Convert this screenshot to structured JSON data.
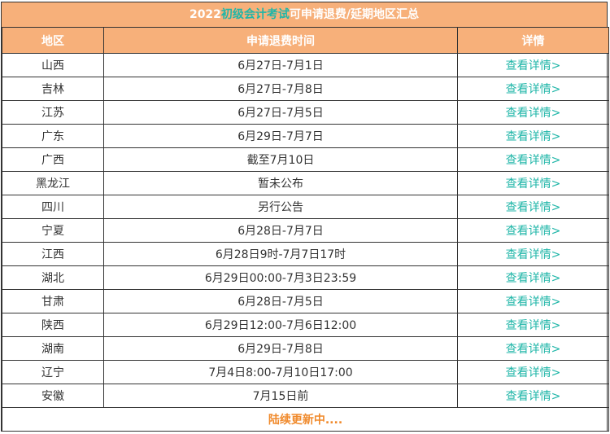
{
  "title": {
    "prefix": "2022",
    "highlight1": "初级会计考试",
    "highlight2": "可申请退费",
    "suffix": "/延期地区汇总"
  },
  "headers": [
    "地区",
    "申请退费时间",
    "详情"
  ],
  "rows": [
    {
      "region": "山西",
      "time": "6月27日-7月1日",
      "detail": "查看详情>"
    },
    {
      "region": "吉林",
      "time": "6月27日-7月8日",
      "detail": "查看详情>"
    },
    {
      "region": "江苏",
      "time": "6月27日-7月5日",
      "detail": "查看详情>"
    },
    {
      "region": "广东",
      "time": "6月29日-7月7日",
      "detail": "查看详情>"
    },
    {
      "region": "广西",
      "time": "截至7月10日",
      "detail": "查看详情>"
    },
    {
      "region": "黑龙江",
      "time": "暂未公布",
      "detail": "查看详情>"
    },
    {
      "region": "四川",
      "time": "另行公告",
      "detail": "查看详情>"
    },
    {
      "region": "宁夏",
      "time": "6月28日-7月7日",
      "detail": "查看详情>"
    },
    {
      "region": "江西",
      "time": "6月28日9时-7月7日17时",
      "detail": "查看详情>"
    },
    {
      "region": "湖北",
      "time": "6月29日00:00-7月3日23:59",
      "detail": "查看详情>"
    },
    {
      "region": "甘肃",
      "time": "6月28日-7月5日",
      "detail": "查看详情>"
    },
    {
      "region": "陕西",
      "time": "6月29日12:00-7月6日12:00",
      "detail": "查看详情>"
    },
    {
      "region": "湖南",
      "time": "6月29日-7月8日",
      "detail": "查看详情>"
    },
    {
      "region": "辽宁",
      "time": "7月4日8:00-7月10日17:00",
      "detail": "查看详情>"
    },
    {
      "region": "安徽",
      "time": "7月15日前",
      "detail": "查看详情>"
    }
  ],
  "footer": "陆续更新中....",
  "colors": {
    "header_bg": "#f7b07a",
    "link": "#1fb6a8",
    "footer": "#f08a2c"
  }
}
